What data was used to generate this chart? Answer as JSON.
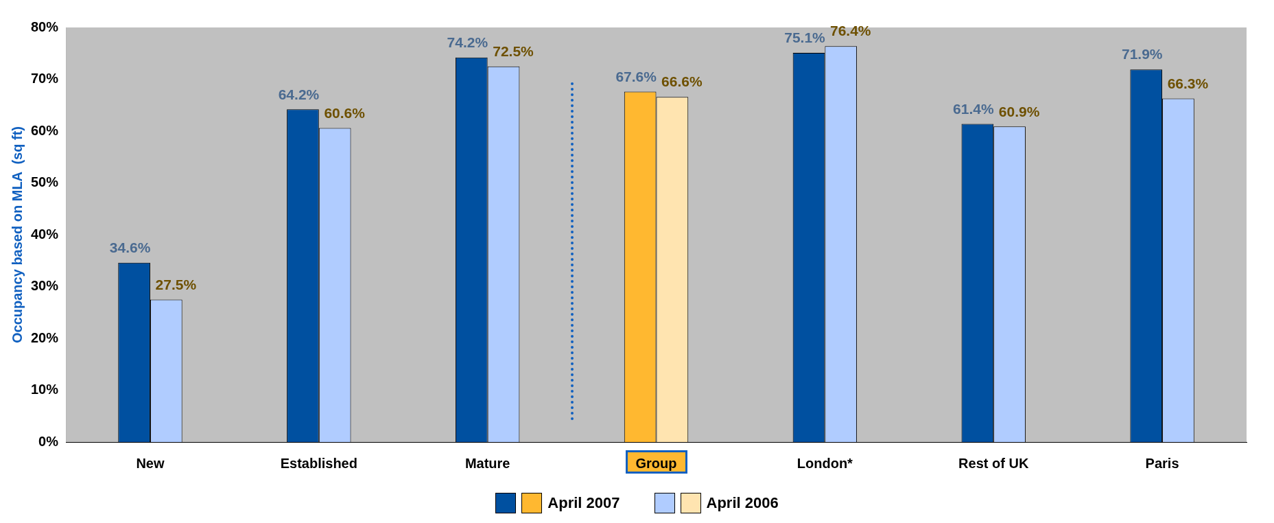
{
  "chart_data": {
    "type": "bar",
    "ylabel": "Occupancy based on MLA  (sq ft)",
    "categories": [
      "New",
      "Established",
      "Mature",
      "Group",
      "London*",
      "Rest of UK",
      "Paris"
    ],
    "series": [
      {
        "name": "April 2007",
        "color": "#0050a0",
        "colors": [
          "#0050a0",
          "#0050a0",
          "#0050a0",
          "#ffb830",
          "#0050a0",
          "#0050a0",
          "#0050a0"
        ],
        "values": [
          34.6,
          64.2,
          74.2,
          67.6,
          75.1,
          61.4,
          71.9
        ],
        "value_labels": [
          "34.6%",
          "64.2%",
          "74.2%",
          "67.6%",
          "75.1%",
          "61.4%",
          "71.9%"
        ]
      },
      {
        "name": "April 2006",
        "color": "#b0ccff",
        "colors": [
          "#b0ccff",
          "#b0ccff",
          "#b0ccff",
          "#ffe4b0",
          "#b0ccff",
          "#b0ccff",
          "#b0ccff"
        ],
        "values": [
          27.5,
          60.6,
          72.5,
          66.6,
          76.4,
          60.9,
          66.3
        ],
        "value_labels": [
          "27.5%",
          "60.6%",
          "72.5%",
          "66.6%",
          "76.4%",
          "60.9%",
          "66.3%"
        ]
      }
    ],
    "ylim": [
      0,
      80
    ],
    "yticks": [
      {
        "value": 0,
        "label": "0%"
      },
      {
        "value": 10,
        "label": "10%"
      },
      {
        "value": 20,
        "label": "20%"
      },
      {
        "value": 30,
        "label": "30%"
      },
      {
        "value": 40,
        "label": "40%"
      },
      {
        "value": 50,
        "label": "50%"
      },
      {
        "value": 60,
        "label": "60%"
      },
      {
        "value": 70,
        "label": "70%"
      },
      {
        "value": 80,
        "label": "80%"
      }
    ],
    "grid": false,
    "legend": "bottom"
  }
}
